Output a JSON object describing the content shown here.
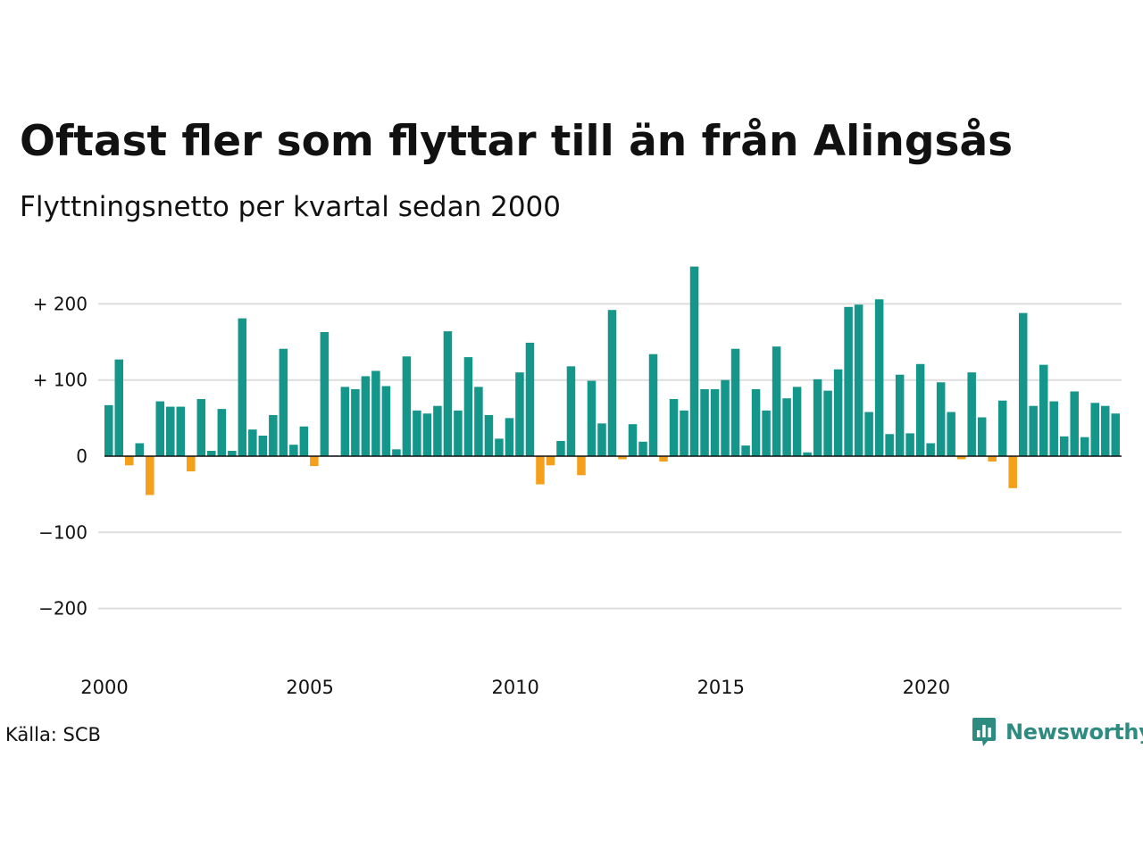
{
  "header": {
    "title": "Oftast fler som flyttar till än från Alingsås",
    "subtitle": "Flyttningsnetto per kvartal sedan 2000"
  },
  "footer": {
    "source": "Källa: SCB",
    "brand": "Newsworthy",
    "brand_icon": "bar-chart-speech-bubble-icon"
  },
  "colors": {
    "positive": "#15968a",
    "negative": "#f5a01a",
    "grid": "#dddddd",
    "zero_line": "#111111",
    "brand": "#2e8b80"
  },
  "chart_data": {
    "type": "bar",
    "title": "Oftast fler som flyttar till än från Alingsås",
    "subtitle": "Flyttningsnetto per kvartal sedan 2000",
    "start_year": 2000,
    "periods_per_year": 4,
    "ylim": [
      -260,
      250
    ],
    "yticks": [
      {
        "value": 200,
        "label": "+ 200"
      },
      {
        "value": 100,
        "label": "+ 100"
      },
      {
        "value": 0,
        "label": "0"
      },
      {
        "value": -100,
        "label": "−100"
      },
      {
        "value": -200,
        "label": "−200"
      }
    ],
    "xticks": [
      {
        "year": 2000,
        "label": "2000"
      },
      {
        "year": 2005,
        "label": "2005"
      },
      {
        "year": 2010,
        "label": "2010"
      },
      {
        "year": 2015,
        "label": "2015"
      },
      {
        "year": 2020,
        "label": "2020"
      }
    ],
    "grid": true,
    "values": [
      67,
      127,
      -12,
      17,
      -51,
      72,
      65,
      65,
      -20,
      75,
      7,
      62,
      7,
      181,
      35,
      27,
      54,
      141,
      15,
      39,
      -13,
      163,
      1,
      91,
      88,
      105,
      112,
      92,
      9,
      131,
      60,
      56,
      66,
      164,
      60,
      130,
      91,
      54,
      23,
      50,
      110,
      149,
      -37,
      -12,
      20,
      118,
      -25,
      99,
      43,
      192,
      -4,
      42,
      19,
      134,
      -7,
      75,
      60,
      249,
      88,
      88,
      100,
      141,
      14,
      88,
      60,
      144,
      76,
      91,
      5,
      101,
      86,
      114,
      196,
      199,
      58,
      206,
      29,
      107,
      30,
      121,
      17,
      97,
      58,
      -4,
      110,
      51,
      -7,
      73,
      -42,
      188,
      66,
      120,
      72,
      26,
      85,
      25,
      70,
      66,
      56
    ]
  }
}
